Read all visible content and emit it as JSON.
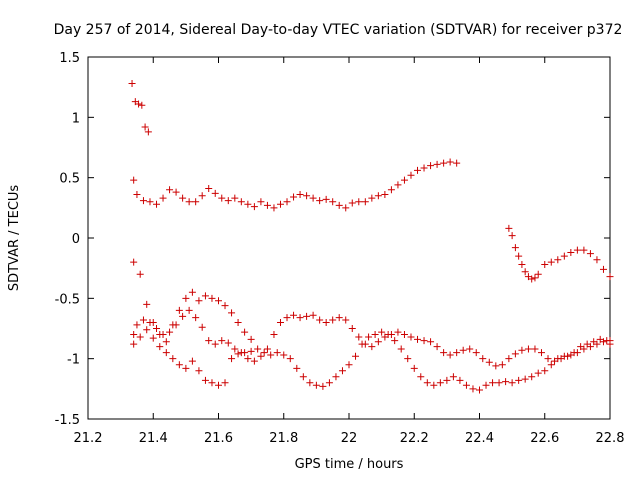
{
  "chart_data": {
    "type": "scatter",
    "title": "Day 257 of 2014, Sidereal Day-to-day VTEC variation (SDTVAR) for receiver p372",
    "xlabel": "GPS time / hours",
    "ylabel": "SDTVAR / TECUs",
    "xlim": [
      21.2,
      22.8
    ],
    "ylim": [
      -1.5,
      1.5
    ],
    "xticks": [
      "21.2",
      "21.4",
      "21.6",
      "21.8",
      "22",
      "22.2",
      "22.4",
      "22.6",
      "22.8"
    ],
    "yticks": [
      "1.5",
      "1",
      "0.5",
      "0",
      "-0.5",
      "-1",
      "-1.5"
    ],
    "marker": "+",
    "color": "#cc0000",
    "grid": false,
    "series": [
      {
        "name": "track-upper",
        "x": [
          21.34,
          21.35,
          21.37,
          21.39,
          21.41,
          21.43,
          21.45,
          21.47,
          21.49,
          21.51,
          21.53,
          21.55,
          21.57,
          21.59,
          21.61,
          21.63,
          21.65,
          21.67,
          21.69,
          21.71,
          21.73,
          21.75,
          21.77,
          21.79,
          21.81,
          21.83,
          21.85,
          21.87,
          21.89,
          21.91,
          21.93,
          21.95,
          21.97,
          21.99,
          22.01,
          22.03,
          22.05,
          22.07,
          22.09,
          22.11,
          22.13,
          22.15,
          22.17,
          22.19,
          22.21,
          22.23,
          22.25,
          22.27,
          22.29,
          22.31,
          22.33
        ],
        "y": [
          0.48,
          0.36,
          0.31,
          0.3,
          0.28,
          0.33,
          0.4,
          0.38,
          0.33,
          0.3,
          0.3,
          0.35,
          0.41,
          0.37,
          0.33,
          0.31,
          0.33,
          0.3,
          0.28,
          0.26,
          0.3,
          0.27,
          0.25,
          0.28,
          0.3,
          0.34,
          0.36,
          0.35,
          0.33,
          0.31,
          0.32,
          0.3,
          0.27,
          0.25,
          0.29,
          0.3,
          0.3,
          0.33,
          0.35,
          0.36,
          0.4,
          0.44,
          0.48,
          0.52,
          0.56,
          0.58,
          0.6,
          0.61,
          0.62,
          0.63,
          0.62
        ]
      },
      {
        "name": "track-start-high",
        "x": [
          21.335,
          21.345,
          21.355,
          21.365,
          21.375,
          21.385
        ],
        "y": [
          1.28,
          1.13,
          1.11,
          1.1,
          0.92,
          0.88
        ]
      },
      {
        "name": "track-right",
        "x": [
          22.49,
          22.5,
          22.51,
          22.52,
          22.53,
          22.54,
          22.55,
          22.56,
          22.57,
          22.58,
          22.6,
          22.62,
          22.64,
          22.66,
          22.68,
          22.7,
          22.72,
          22.74,
          22.76,
          22.78,
          22.8
        ],
        "y": [
          0.08,
          0.02,
          -0.08,
          -0.15,
          -0.22,
          -0.28,
          -0.32,
          -0.34,
          -0.33,
          -0.3,
          -0.22,
          -0.2,
          -0.18,
          -0.15,
          -0.12,
          -0.1,
          -0.1,
          -0.13,
          -0.18,
          -0.26,
          -0.32
        ]
      },
      {
        "name": "track-lower-a",
        "x": [
          21.34,
          21.35,
          21.37,
          21.39,
          21.41,
          21.43,
          21.45,
          21.47,
          21.49,
          21.51,
          21.53,
          21.55,
          21.57,
          21.59,
          21.61,
          21.63,
          21.65,
          21.67,
          21.69,
          21.71,
          21.73,
          21.75,
          21.77,
          21.79,
          21.81,
          21.83,
          21.85,
          21.87,
          21.89,
          21.91,
          21.93,
          21.95,
          21.97,
          21.99,
          22.01,
          22.03,
          22.05,
          22.07,
          22.09,
          22.11,
          22.13,
          22.15,
          22.17,
          22.19,
          22.21,
          22.23,
          22.25,
          22.27,
          22.29,
          22.31,
          22.33,
          22.35,
          22.37,
          22.39,
          22.41,
          22.43,
          22.45,
          22.47,
          22.49,
          22.51,
          22.53,
          22.55,
          22.57,
          22.59,
          22.61,
          22.63,
          22.65,
          22.67,
          22.69,
          22.71,
          22.73,
          22.75,
          22.77,
          22.79,
          22.8
        ],
        "y": [
          -0.8,
          -0.72,
          -0.68,
          -0.7,
          -0.75,
          -0.8,
          -0.78,
          -0.72,
          -0.65,
          -0.6,
          -0.66,
          -0.74,
          -0.85,
          -0.88,
          -0.85,
          -0.87,
          -0.92,
          -0.95,
          -1.0,
          -1.02,
          -0.98,
          -0.92,
          -0.8,
          -0.7,
          -0.66,
          -0.64,
          -0.66,
          -0.65,
          -0.64,
          -0.68,
          -0.7,
          -0.68,
          -0.66,
          -0.68,
          -0.75,
          -0.82,
          -0.88,
          -0.9,
          -0.86,
          -0.82,
          -0.8,
          -0.78,
          -0.8,
          -0.82,
          -0.84,
          -0.85,
          -0.86,
          -0.9,
          -0.95,
          -0.97,
          -0.95,
          -0.93,
          -0.92,
          -0.95,
          -1.0,
          -1.03,
          -1.06,
          -1.05,
          -1.0,
          -0.96,
          -0.93,
          -0.92,
          -0.92,
          -0.95,
          -1.0,
          -1.02,
          -1.0,
          -0.98,
          -0.95,
          -0.9,
          -0.88,
          -0.86,
          -0.84,
          -0.85,
          -0.88
        ]
      },
      {
        "name": "track-lower-b",
        "x": [
          21.34,
          21.36,
          21.38,
          21.4,
          21.42,
          21.44,
          21.46,
          21.48,
          21.5,
          21.52,
          21.54,
          21.56,
          21.58,
          21.6,
          21.62,
          21.64,
          21.66,
          21.68,
          21.7,
          21.72,
          21.74,
          21.76,
          21.78,
          21.8,
          21.82,
          21.84,
          21.86,
          21.88,
          21.9,
          21.92,
          21.94,
          21.96,
          21.98,
          22.0,
          22.02,
          22.04,
          22.06,
          22.08,
          22.1,
          22.12,
          22.14,
          22.16,
          22.18,
          22.2,
          22.22,
          22.24,
          22.26,
          22.28,
          22.3,
          22.32,
          22.34,
          22.36,
          22.38,
          22.4,
          22.42,
          22.44,
          22.46,
          22.48,
          22.5,
          22.52,
          22.54,
          22.56,
          22.58,
          22.6,
          22.62,
          22.64,
          22.66,
          22.68,
          22.7,
          22.72,
          22.74,
          22.76,
          22.78,
          22.8
        ],
        "y": [
          -0.88,
          -0.82,
          -0.76,
          -0.83,
          -0.9,
          -0.95,
          -1.0,
          -1.05,
          -1.08,
          -1.02,
          -1.1,
          -1.18,
          -1.2,
          -1.22,
          -1.2,
          -1.0,
          -0.96,
          -0.95,
          -0.94,
          -0.92,
          -0.95,
          -0.97,
          -0.95,
          -0.97,
          -1.0,
          -1.08,
          -1.15,
          -1.2,
          -1.22,
          -1.23,
          -1.2,
          -1.15,
          -1.1,
          -1.05,
          -0.98,
          -0.88,
          -0.82,
          -0.8,
          -0.78,
          -0.8,
          -0.85,
          -0.92,
          -1.0,
          -1.08,
          -1.15,
          -1.2,
          -1.22,
          -1.2,
          -1.18,
          -1.15,
          -1.18,
          -1.22,
          -1.25,
          -1.26,
          -1.22,
          -1.2,
          -1.2,
          -1.19,
          -1.2,
          -1.18,
          -1.17,
          -1.15,
          -1.12,
          -1.1,
          -1.05,
          -1.0,
          -0.98,
          -0.97,
          -0.95,
          -0.92,
          -0.9,
          -0.88,
          -0.86,
          -0.85
        ]
      },
      {
        "name": "track-lower-c",
        "x": [
          21.34,
          21.36,
          21.38,
          21.4,
          21.42,
          21.44,
          21.46,
          21.48,
          21.5,
          21.52,
          21.54,
          21.56,
          21.58,
          21.6,
          21.62,
          21.64,
          21.66,
          21.68,
          21.7
        ],
        "y": [
          -0.2,
          -0.3,
          -0.55,
          -0.7,
          -0.8,
          -0.86,
          -0.72,
          -0.6,
          -0.5,
          -0.45,
          -0.52,
          -0.48,
          -0.5,
          -0.52,
          -0.56,
          -0.62,
          -0.7,
          -0.78,
          -0.84
        ]
      }
    ]
  }
}
